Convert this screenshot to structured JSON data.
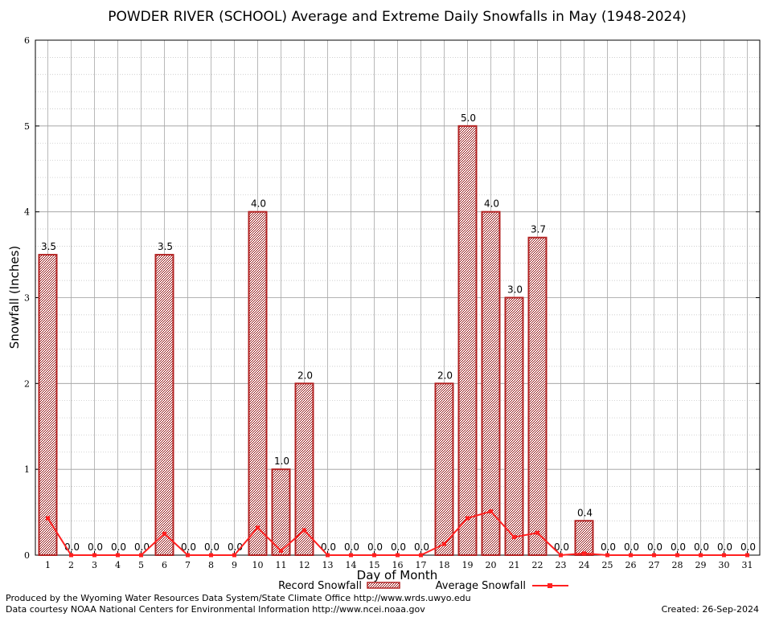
{
  "chart_data": {
    "type": "bar",
    "title": "POWDER RIVER (SCHOOL) Average and Extreme Daily Snowfalls in May (1948-2024)",
    "xlabel": "Day of Month",
    "ylabel": "Snowfall (Inches)",
    "ylim": [
      0,
      6
    ],
    "yticks": [
      0,
      1,
      2,
      3,
      4,
      5,
      6
    ],
    "grid": true,
    "categories": [
      "1",
      "2",
      "3",
      "4",
      "5",
      "6",
      "7",
      "8",
      "9",
      "10",
      "11",
      "12",
      "13",
      "14",
      "15",
      "16",
      "17",
      "18",
      "19",
      "20",
      "21",
      "22",
      "23",
      "24",
      "25",
      "26",
      "27",
      "28",
      "29",
      "30",
      "31"
    ],
    "series": [
      {
        "name": "Record Snowfall",
        "type": "bar",
        "color": "#b22222",
        "values": [
          3.5,
          0.0,
          0.0,
          0.0,
          0.0,
          3.5,
          0.0,
          0.0,
          0.0,
          4.0,
          1.0,
          2.0,
          0.0,
          0.0,
          0.0,
          0.0,
          0.0,
          2.0,
          5.0,
          4.0,
          3.0,
          3.7,
          0.0,
          0.4,
          0.0,
          0.0,
          0.0,
          0.0,
          0.0,
          0.0,
          0.0
        ],
        "labels": [
          "3.5",
          "0.0",
          "0.0",
          "0.0",
          "0.0",
          "3.5",
          "0.0",
          "0.0",
          "0.0",
          "4.0",
          "1.0",
          "2.0",
          "0.0",
          "0.0",
          "0.0",
          "0.0",
          "0.0",
          "2.0",
          "5.0",
          "4.0",
          "3.0",
          "3.7",
          "0.0",
          "0.4",
          "0.0",
          "0.0",
          "0.0",
          "0.0",
          "0.0",
          "0.0",
          "0.0"
        ]
      },
      {
        "name": "Average Snowfall",
        "type": "line",
        "color": "#ff2020",
        "values": [
          0.43,
          0.0,
          0.0,
          0.0,
          0.0,
          0.25,
          0.0,
          0.0,
          0.0,
          0.32,
          0.05,
          0.29,
          0.0,
          0.0,
          0.0,
          0.0,
          0.0,
          0.13,
          0.43,
          0.51,
          0.21,
          0.26,
          0.0,
          0.02,
          0.0,
          0.0,
          0.0,
          0.0,
          0.0,
          0.0,
          0.0
        ]
      }
    ],
    "legend_position": "bottom-center"
  },
  "footer": {
    "line1": "Produced by the Wyoming Water Resources Data System/State Climate Office http://www.wrds.uwyo.edu",
    "line2": "Data courtesy NOAA National Centers for Environmental Information http://www.ncei.noaa.gov",
    "created": "Created:  26-Sep-2024"
  }
}
